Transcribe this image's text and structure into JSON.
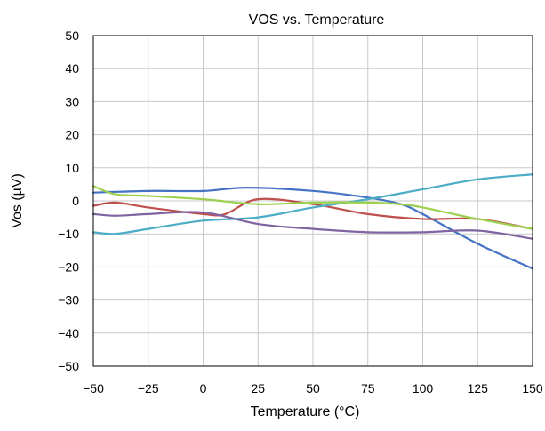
{
  "chart_data": {
    "type": "line",
    "title": "VOS vs. Temperature",
    "xlabel": "Temperature (°C)",
    "ylabel": "Vos (µV)",
    "xlim": [
      -50,
      150
    ],
    "ylim": [
      -50,
      50
    ],
    "x_ticks": [
      -50,
      -25,
      0,
      25,
      50,
      75,
      100,
      125,
      150
    ],
    "y_ticks": [
      -50,
      -40,
      -30,
      -20,
      -10,
      0,
      10,
      20,
      30,
      40,
      50
    ],
    "x_tick_labels": [
      "−50",
      "−25",
      "0",
      "25",
      "50",
      "75",
      "100",
      "125",
      "150"
    ],
    "y_tick_labels": [
      "−50",
      "−40",
      "−30",
      "−20",
      "−10",
      "0",
      "10",
      "20",
      "30",
      "40",
      "50"
    ],
    "grid": true,
    "legend": "none",
    "series": [
      {
        "color": "#4472c4",
        "points": [
          [
            -50,
            2.5
          ],
          [
            -25,
            3
          ],
          [
            0,
            3
          ],
          [
            20,
            4
          ],
          [
            50,
            3
          ],
          [
            75,
            1
          ],
          [
            90,
            -1
          ],
          [
            100,
            -4
          ],
          [
            125,
            -13
          ],
          [
            150,
            -20.5
          ]
        ]
      },
      {
        "color": "#c0504d",
        "points": [
          [
            -50,
            -1.5
          ],
          [
            -40,
            -0.5
          ],
          [
            -25,
            -2
          ],
          [
            0,
            -4
          ],
          [
            10,
            -4
          ],
          [
            25,
            0.5
          ],
          [
            50,
            -1
          ],
          [
            75,
            -4
          ],
          [
            100,
            -5.5
          ],
          [
            125,
            -5.5
          ],
          [
            150,
            -8.5
          ]
        ]
      },
      {
        "color": "#4bacc6",
        "points": [
          [
            -50,
            -9.5
          ],
          [
            -40,
            -10
          ],
          [
            -25,
            -8.5
          ],
          [
            0,
            -6
          ],
          [
            25,
            -5
          ],
          [
            50,
            -2
          ],
          [
            75,
            0.5
          ],
          [
            100,
            3.5
          ],
          [
            125,
            6.5
          ],
          [
            150,
            8
          ]
        ]
      },
      {
        "color": "#8064a2",
        "points": [
          [
            -50,
            -4
          ],
          [
            -40,
            -4.5
          ],
          [
            -25,
            -4
          ],
          [
            0,
            -3.5
          ],
          [
            25,
            -7
          ],
          [
            50,
            -8.5
          ],
          [
            75,
            -9.5
          ],
          [
            100,
            -9.5
          ],
          [
            125,
            -9
          ],
          [
            150,
            -11.5
          ]
        ]
      },
      {
        "color": "#9bd14f",
        "points": [
          [
            -50,
            4.5
          ],
          [
            -40,
            2
          ],
          [
            -25,
            1.5
          ],
          [
            0,
            0.5
          ],
          [
            25,
            -1
          ],
          [
            50,
            -0.5
          ],
          [
            75,
            -0.5
          ],
          [
            90,
            -1
          ],
          [
            100,
            -2
          ],
          [
            125,
            -5.5
          ],
          [
            150,
            -8.5
          ]
        ]
      }
    ]
  }
}
